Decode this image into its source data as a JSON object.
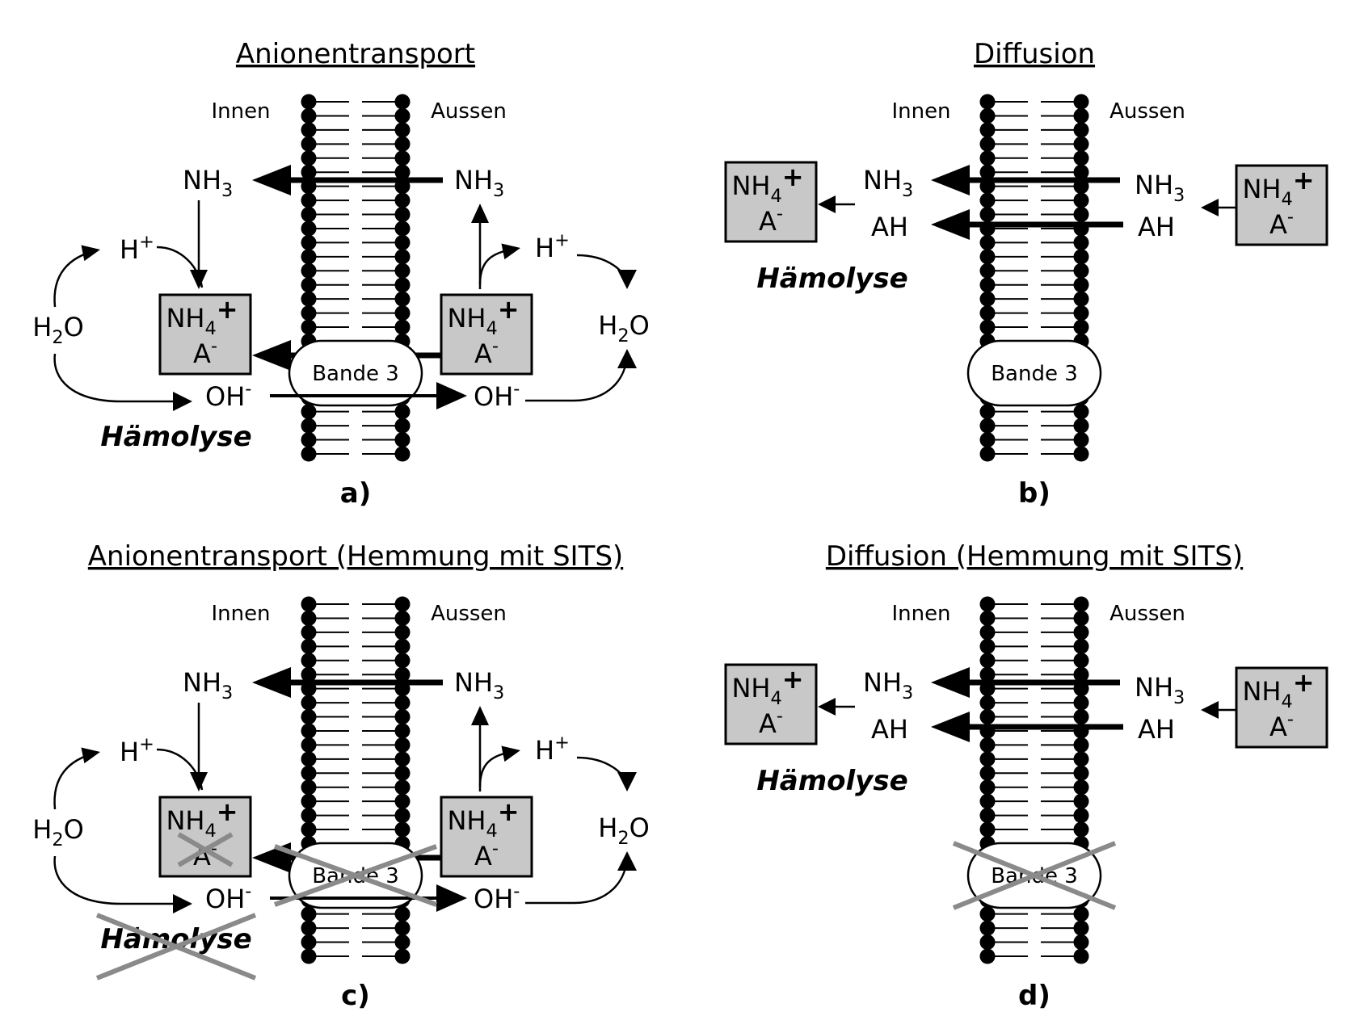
{
  "colors": {
    "box_fill": "#c8c8c8",
    "cross": "#8a8a8a",
    "ink": "#000000",
    "background": "#ffffff"
  },
  "labels": {
    "innen": "Innen",
    "aussen": "Aussen",
    "nh3_main": "NH",
    "nh3_sub": "3",
    "nh4_main": "NH",
    "nh4_sub": "4",
    "nh4_sup": "+",
    "anion_main": "A",
    "anion_sup": "-",
    "h_main": "H",
    "h_sup": "+",
    "h2o_h": "H",
    "h2o_sub": "2",
    "h2o_o": "O",
    "oh_main": "OH",
    "oh_sup": "-",
    "ah": "AH",
    "bande3": "Bande 3",
    "haemolyse": "Hämolyse"
  },
  "panels": [
    {
      "id": "a",
      "title": "Anionentransport",
      "letter": "a)",
      "type": "anion",
      "inhibited": false
    },
    {
      "id": "b",
      "title": "Diffusion",
      "letter": "b)",
      "type": "diffusion",
      "inhibited": false
    },
    {
      "id": "c",
      "title": "Anionentransport (Hemmung mit SITS)",
      "letter": "c)",
      "type": "anion",
      "inhibited": true
    },
    {
      "id": "d",
      "title": "Diffusion (Hemmung mit SITS)",
      "letter": "d)",
      "type": "diffusion",
      "inhibited": true
    }
  ]
}
